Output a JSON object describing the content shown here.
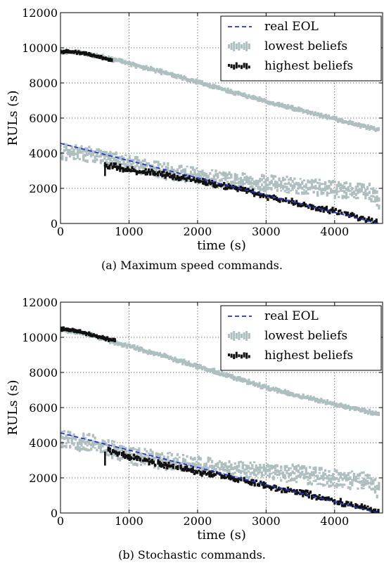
{
  "colors": {
    "real_eol": "#2233cc",
    "lowest_beliefs": "#aebfbf",
    "highest_beliefs": "#111111",
    "grid": "#555555"
  },
  "chart_data": [
    {
      "type": "scatter",
      "caption": "(a) Maximum speed commands.",
      "xlabel": "time (s)",
      "ylabel": "RULs (s)",
      "xlim": [
        0,
        4700
      ],
      "ylim": [
        0,
        12000
      ],
      "xticks": [
        0,
        1000,
        2000,
        3000,
        4000
      ],
      "yticks": [
        0,
        2000,
        4000,
        6000,
        8000,
        10000,
        12000
      ],
      "grid": true,
      "legend_position": "top-right",
      "legend": [
        "real EOL",
        "lowest beliefs",
        "highest beliefs"
      ],
      "series": [
        {
          "name": "real EOL",
          "style": "dashed-line",
          "x": [
            0,
            4640
          ],
          "y": [
            4560,
            0
          ]
        },
        {
          "name": "lowest beliefs",
          "style": "marker-clusters",
          "bands": [
            {
              "points": [
                [
                  0,
                  9760
                ],
                [
                  300,
                  9720
                ],
                [
                  700,
                  9400
                ],
                [
                  1000,
                  9100
                ],
                [
                  1500,
                  8600
                ],
                [
                  2000,
                  8050
                ],
                [
                  2500,
                  7500
                ],
                [
                  3000,
                  6950
                ],
                [
                  3500,
                  6450
                ],
                [
                  4000,
                  5950
                ],
                [
                  4500,
                  5450
                ],
                [
                  4650,
                  5300
                ]
              ],
              "spread": 100
            },
            {
              "points": [
                [
                  0,
                  4100
                ],
                [
                  500,
                  3950
                ],
                [
                  1000,
                  3400
                ],
                [
                  1500,
                  3000
                ],
                [
                  2000,
                  2700
                ],
                [
                  2500,
                  2450
                ],
                [
                  3000,
                  2300
                ],
                [
                  3500,
                  2150
                ],
                [
                  4000,
                  1950
                ],
                [
                  4500,
                  1800
                ],
                [
                  4650,
                  1300
                ]
              ],
              "spread": 450
            }
          ]
        },
        {
          "name": "highest beliefs",
          "style": "marker-clusters",
          "bands": [
            {
              "points": [
                [
                  0,
                  9780
                ],
                [
                  200,
                  9760
                ],
                [
                  400,
                  9650
                ],
                [
                  600,
                  9450
                ],
                [
                  750,
                  9300
                ]
              ],
              "spread": 70
            },
            {
              "points": [
                [
                  650,
                  3300
                ],
                [
                  800,
                  3250
                ],
                [
                  1000,
                  3050
                ],
                [
                  1500,
                  2800
                ],
                [
                  2000,
                  2450
                ],
                [
                  2500,
                  2050
                ],
                [
                  3000,
                  1550
                ],
                [
                  3500,
                  1120
                ],
                [
                  4000,
                  700
                ],
                [
                  4500,
                  200
                ],
                [
                  4650,
                  0
                ]
              ],
              "spread": 160
            }
          ]
        }
      ]
    },
    {
      "type": "scatter",
      "caption": "(b) Stochastic commands.",
      "xlabel": "time (s)",
      "ylabel": "RULs (s)",
      "xlim": [
        0,
        4700
      ],
      "ylim": [
        0,
        12000
      ],
      "xticks": [
        0,
        1000,
        2000,
        3000,
        4000
      ],
      "yticks": [
        0,
        2000,
        4000,
        6000,
        8000,
        10000,
        12000
      ],
      "grid": true,
      "legend_position": "top-right",
      "legend": [
        "real EOL",
        "lowest beliefs",
        "highest beliefs"
      ],
      "series": [
        {
          "name": "real EOL",
          "style": "dashed-line",
          "x": [
            0,
            4640
          ],
          "y": [
            4560,
            0
          ]
        },
        {
          "name": "lowest beliefs",
          "style": "marker-clusters",
          "bands": [
            {
              "points": [
                [
                  0,
                  10450
                ],
                [
                  400,
                  10200
                ],
                [
                  800,
                  9700
                ],
                [
                  1000,
                  9500
                ],
                [
                  1500,
                  8950
                ],
                [
                  2000,
                  8350
                ],
                [
                  2500,
                  7750
                ],
                [
                  3000,
                  7150
                ],
                [
                  3500,
                  6650
                ],
                [
                  4000,
                  6200
                ],
                [
                  4500,
                  5750
                ],
                [
                  4650,
                  5650
                ]
              ],
              "spread": 110
            },
            {
              "points": [
                [
                  0,
                  4200
                ],
                [
                  500,
                  3950
                ],
                [
                  1000,
                  3300
                ],
                [
                  1500,
                  3000
                ],
                [
                  2000,
                  2700
                ],
                [
                  2500,
                  2500
                ],
                [
                  3000,
                  2350
                ],
                [
                  3500,
                  2200
                ],
                [
                  4000,
                  1950
                ],
                [
                  4500,
                  1800
                ],
                [
                  4650,
                  1300
                ]
              ],
              "spread": 500
            }
          ]
        },
        {
          "name": "highest beliefs",
          "style": "marker-clusters",
          "bands": [
            {
              "points": [
                [
                  0,
                  10480
                ],
                [
                  200,
                  10400
                ],
                [
                  450,
                  10150
                ],
                [
                  700,
                  9900
                ],
                [
                  800,
                  9800
                ]
              ],
              "spread": 70
            },
            {
              "points": [
                [
                  700,
                  3550
                ],
                [
                  800,
                  3450
                ],
                [
                  1000,
                  3200
                ],
                [
                  1500,
                  2750
                ],
                [
                  2000,
                  2350
                ],
                [
                  2500,
                  2000
                ],
                [
                  3000,
                  1550
                ],
                [
                  3500,
                  1150
                ],
                [
                  4000,
                  700
                ],
                [
                  4500,
                  200
                ],
                [
                  4650,
                  0
                ]
              ],
              "spread": 170
            }
          ]
        }
      ]
    }
  ]
}
